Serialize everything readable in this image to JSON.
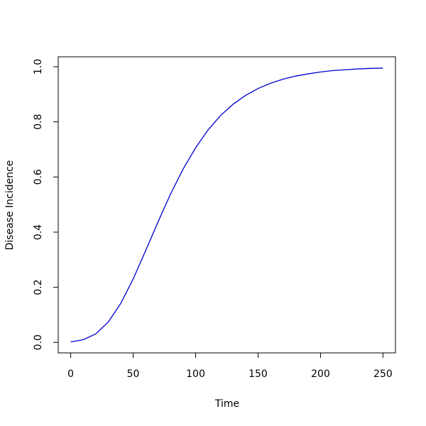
{
  "chart_data": {
    "type": "line",
    "x_label": "Time",
    "y_label": "Disease Incidence",
    "x": [
      0,
      10,
      20,
      30,
      40,
      50,
      60,
      70,
      80,
      90,
      100,
      110,
      120,
      130,
      140,
      150,
      160,
      170,
      180,
      190,
      200,
      210,
      220,
      230,
      240,
      250
    ],
    "series": [
      {
        "color": "#0000cd",
        "values": [
          0.002,
          0.0096,
          0.0307,
          0.0734,
          0.141,
          0.23,
          0.333,
          0.438,
          0.539,
          0.629,
          0.706,
          0.771,
          0.823,
          0.864,
          0.896,
          0.921,
          0.94,
          0.955,
          0.966,
          0.974,
          0.981,
          0.986,
          0.989,
          0.992,
          0.994,
          0.995
        ]
      }
    ],
    "xlim": [
      -10,
      260
    ],
    "ylim": [
      -0.038,
      1.036
    ],
    "xticks": [
      0,
      50,
      100,
      150,
      200,
      250
    ],
    "yticks": [
      {
        "value": 0,
        "label": "0.0"
      },
      {
        "value": 0.2,
        "label": "0.2"
      },
      {
        "value": 0.4,
        "label": "0.4"
      },
      {
        "value": 0.6,
        "label": "0.6"
      },
      {
        "value": 0.8,
        "label": "0.8"
      },
      {
        "value": 1,
        "label": "1.0"
      }
    ]
  }
}
